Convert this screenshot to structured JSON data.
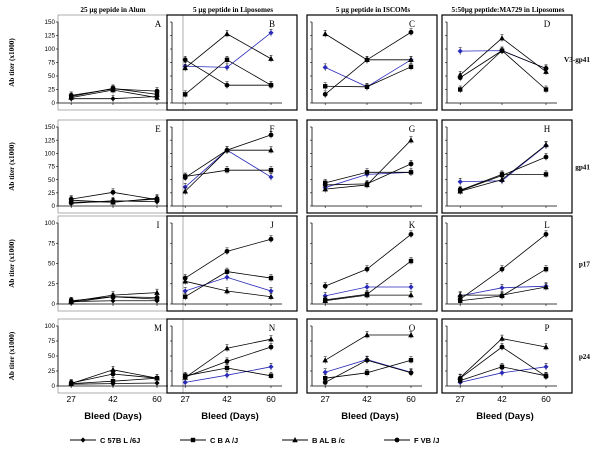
{
  "chart_data": {
    "type": "line",
    "title": "",
    "column_titles": [
      "25 µg pepide in Alum",
      "5 µg peptide in Liposomes",
      "5 µg peptide in ISCOMs",
      "5:50µg peptide:MA729 in Liposomes"
    ],
    "row_labels": [
      "V3-gp41",
      "gp41",
      "p17",
      "p24"
    ],
    "ylabel": "Ab titer (x1000)",
    "xlabel": "Bleed (Days)",
    "x": [
      27,
      42,
      60
    ],
    "x_tick_labels": [
      "27",
      "42",
      "60"
    ],
    "legend_position": "bottom",
    "series_names": [
      "C 57B L /6J",
      "C B A /J",
      "B AL B /c",
      "F VB /J"
    ],
    "series_colors": [
      "#000000",
      "#000000",
      "#000000",
      "#000000"
    ],
    "accent_color": "#2a2ab8",
    "rows": [
      {
        "label": "V3-gp41",
        "ylim": [
          0,
          150
        ],
        "yticks": [
          "0",
          "25",
          "50",
          "75",
          "100",
          "125",
          "150"
        ],
        "panels": [
          {
            "letter": "A",
            "series": [
              {
                "name": "C 57B L /6J",
                "values": [
                  8,
                  8,
                  12
                ]
              },
              {
                "name": "C B A /J",
                "values": [
                  12,
                  27,
                  16
                ]
              },
              {
                "name": "B AL B /c",
                "values": [
                  10,
                  24,
                  10
                ]
              },
              {
                "name": "F VB /J",
                "values": [
                  14,
                  26,
                  22
                ]
              }
            ]
          },
          {
            "letter": "B",
            "series": [
              {
                "name": "C 57B L /6J",
                "values": [
                  68,
                  66,
                  130
                ]
              },
              {
                "name": "C B A /J",
                "values": [
                  16,
                  80,
                  33
                ]
              },
              {
                "name": "B AL B /c",
                "values": [
                  65,
                  128,
                  82
                ]
              },
              {
                "name": "F VB /J",
                "values": [
                  80,
                  33,
                  33
                ]
              }
            ]
          },
          {
            "letter": "C",
            "series": [
              {
                "name": "C 57B L /6J",
                "values": [
                  66,
                  30,
                  80
                ]
              },
              {
                "name": "C B A /J",
                "values": [
                  31,
                  30,
                  67
                ]
              },
              {
                "name": "B AL B /c",
                "values": [
                  128,
                  80,
                  80
                ]
              },
              {
                "name": "F VB /J",
                "values": [
                  16,
                  80,
                  131
                ]
              }
            ]
          },
          {
            "letter": "D",
            "series": [
              {
                "name": "C 57B L /6J",
                "values": [
                  96,
                  97,
                  64
                ]
              },
              {
                "name": "C B A /J",
                "values": [
                  25,
                  97,
                  25
                ]
              },
              {
                "name": "B AL B /c",
                "values": [
                  52,
                  120,
                  58
                ]
              },
              {
                "name": "F VB /J",
                "values": [
                  47,
                  97,
                  64
                ]
              }
            ]
          }
        ]
      },
      {
        "label": "gp41",
        "ylim": [
          0,
          150
        ],
        "yticks": [
          "0",
          "25",
          "50",
          "75",
          "100",
          "125",
          "150"
        ],
        "panels": [
          {
            "letter": "E",
            "series": [
              {
                "name": "C 57B L /6J",
                "values": [
                  5,
                  10,
                  8
                ]
              },
              {
                "name": "C B A /J",
                "values": [
                  7,
                  8,
                  13
                ]
              },
              {
                "name": "B AL B /c",
                "values": [
                  11,
                  7,
                  15
                ]
              },
              {
                "name": "F VB /J",
                "values": [
                  13,
                  26,
                  12
                ]
              }
            ]
          },
          {
            "letter": "F",
            "series": [
              {
                "name": "C 57B L /6J",
                "values": [
                  36,
                  106,
                  55
                ]
              },
              {
                "name": "C B A /J",
                "values": [
                  56,
                  68,
                  68
                ]
              },
              {
                "name": "B AL B /c",
                "values": [
                  28,
                  106,
                  106
                ]
              },
              {
                "name": "F VB /J",
                "values": [
                  54,
                  106,
                  135
                ]
              }
            ]
          },
          {
            "letter": "G",
            "series": [
              {
                "name": "C 57B L /6J",
                "values": [
                  35,
                  60,
                  64
                ]
              },
              {
                "name": "C B A /J",
                "values": [
                  44,
                  64,
                  64
                ]
              },
              {
                "name": "B AL B /c",
                "values": [
                  32,
                  40,
                  125
                ]
              },
              {
                "name": "F VB /J",
                "values": [
                  40,
                  42,
                  80
                ]
              }
            ]
          },
          {
            "letter": "H",
            "series": [
              {
                "name": "C 57B L /6J",
                "values": [
                  46,
                  48,
                  115
                ]
              },
              {
                "name": "C B A /J",
                "values": [
                  30,
                  60,
                  60
                ]
              },
              {
                "name": "B AL B /c",
                "values": [
                  28,
                  50,
                  116
                ]
              },
              {
                "name": "F VB /J",
                "values": [
                  29,
                  58,
                  93
                ]
              }
            ]
          }
        ]
      },
      {
        "label": "p17",
        "ylim": [
          0,
          100
        ],
        "yticks": [
          "0",
          "25",
          "50",
          "75",
          "100"
        ],
        "panels": [
          {
            "letter": "I",
            "series": [
              {
                "name": "C 57B L /6J",
                "values": [
                  3,
                  4,
                  4
                ]
              },
              {
                "name": "C B A /J",
                "values": [
                  4,
                  9,
                  6
                ]
              },
              {
                "name": "B AL B /c",
                "values": [
                  3,
                  11,
                  14
                ]
              },
              {
                "name": "F VB /J",
                "values": [
                  2,
                  9,
                  8
                ]
              }
            ]
          },
          {
            "letter": "J",
            "series": [
              {
                "name": "C 57B L /6J",
                "values": [
                  16,
                  33,
                  16
                ]
              },
              {
                "name": "C B A /J",
                "values": [
                  9,
                  40,
                  32
                ]
              },
              {
                "name": "B AL B /c",
                "values": [
                  28,
                  16,
                  9
                ]
              },
              {
                "name": "F VB /J",
                "values": [
                  32,
                  65,
                  80
                ]
              }
            ]
          },
          {
            "letter": "K",
            "series": [
              {
                "name": "C 57B L /6J",
                "values": [
                  10,
                  21,
                  21
                ]
              },
              {
                "name": "C B A /J",
                "values": [
                  5,
                  12,
                  53
                ]
              },
              {
                "name": "B AL B /c",
                "values": [
                  4,
                  11,
                  11
                ]
              },
              {
                "name": "F VB /J",
                "values": [
                  22,
                  43,
                  86
                ]
              }
            ]
          },
          {
            "letter": "L",
            "series": [
              {
                "name": "C 57B L /6J",
                "values": [
                  10,
                  20,
                  22
                ]
              },
              {
                "name": "C B A /J",
                "values": [
                  4,
                  10,
                  43
                ]
              },
              {
                "name": "B AL B /c",
                "values": [
                  11,
                  11,
                  21
                ]
              },
              {
                "name": "F VB /J",
                "values": [
                  6,
                  43,
                  86
                ]
              }
            ]
          }
        ]
      },
      {
        "label": "p24",
        "ylim": [
          0,
          100
        ],
        "yticks": [
          "0",
          "25",
          "50",
          "75",
          "100"
        ],
        "panels": [
          {
            "letter": "M",
            "series": [
              {
                "name": "C 57B L /6J",
                "values": [
                  3,
                  4,
                  5
                ]
              },
              {
                "name": "C B A /J",
                "values": [
                  4,
                  8,
                  13
                ]
              },
              {
                "name": "B AL B /c",
                "values": [
                  4,
                  27,
                  13
                ]
              },
              {
                "name": "F VB /J",
                "values": [
                  5,
                  20,
                  13
                ]
              }
            ]
          },
          {
            "letter": "N",
            "series": [
              {
                "name": "C 57B L /6J",
                "values": [
                  6,
                  18,
                  32
                ]
              },
              {
                "name": "C B A /J",
                "values": [
                  17,
                  30,
                  17
                ]
              },
              {
                "name": "B AL B /c",
                "values": [
                  14,
                  63,
                  78
                ]
              },
              {
                "name": "F VB /J",
                "values": [
                  15,
                  41,
                  65
                ]
              }
            ]
          },
          {
            "letter": "O",
            "series": [
              {
                "name": "C 57B L /6J",
                "values": [
                  23,
                  44,
                  23
                ]
              },
              {
                "name": "C B A /J",
                "values": [
                  13,
                  22,
                  43
                ]
              },
              {
                "name": "B AL B /c",
                "values": [
                  43,
                  85,
                  85
                ]
              },
              {
                "name": "F VB /J",
                "values": [
                  6,
                  43,
                  22
                ]
              }
            ]
          },
          {
            "letter": "P",
            "series": [
              {
                "name": "C 57B L /6J",
                "values": [
                  6,
                  22,
                  32
                ]
              },
              {
                "name": "C B A /J",
                "values": [
                  9,
                  32,
                  17
                ]
              },
              {
                "name": "B AL B /c",
                "values": [
                  14,
                  79,
                  65
                ]
              },
              {
                "name": "F VB /J",
                "values": [
                  13,
                  65,
                  16
                ]
              }
            ]
          }
        ]
      }
    ]
  }
}
